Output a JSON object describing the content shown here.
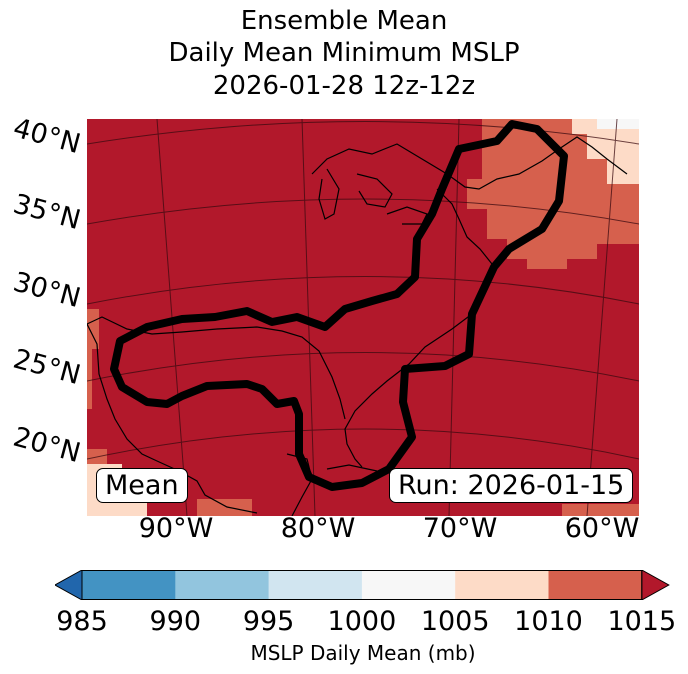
{
  "title": {
    "line1": "Ensemble Mean",
    "line2": "Daily Mean Minimum MSLP",
    "line3": "2026-01-28 12z-12z"
  },
  "map": {
    "lat_labels": [
      "40°N",
      "35°N",
      "30°N",
      "25°N",
      "20°N"
    ],
    "lon_labels": [
      "90°W",
      "80°W",
      "70°W",
      "60°W"
    ],
    "mean_label": "Mean",
    "run_label": "Run: 2026-01-15",
    "background_color": "#b2182b",
    "contour_color": "#000000"
  },
  "colorbar": {
    "ticks": [
      "985",
      "990",
      "995",
      "1000",
      "1005",
      "1010",
      "1015"
    ],
    "colors": [
      "#2166ac",
      "#4393c3",
      "#92c5de",
      "#d1e5f0",
      "#f7f7f7",
      "#fddbc7",
      "#d6604d",
      "#b2182b"
    ],
    "label": "MSLP Daily Mean (mb)"
  }
}
